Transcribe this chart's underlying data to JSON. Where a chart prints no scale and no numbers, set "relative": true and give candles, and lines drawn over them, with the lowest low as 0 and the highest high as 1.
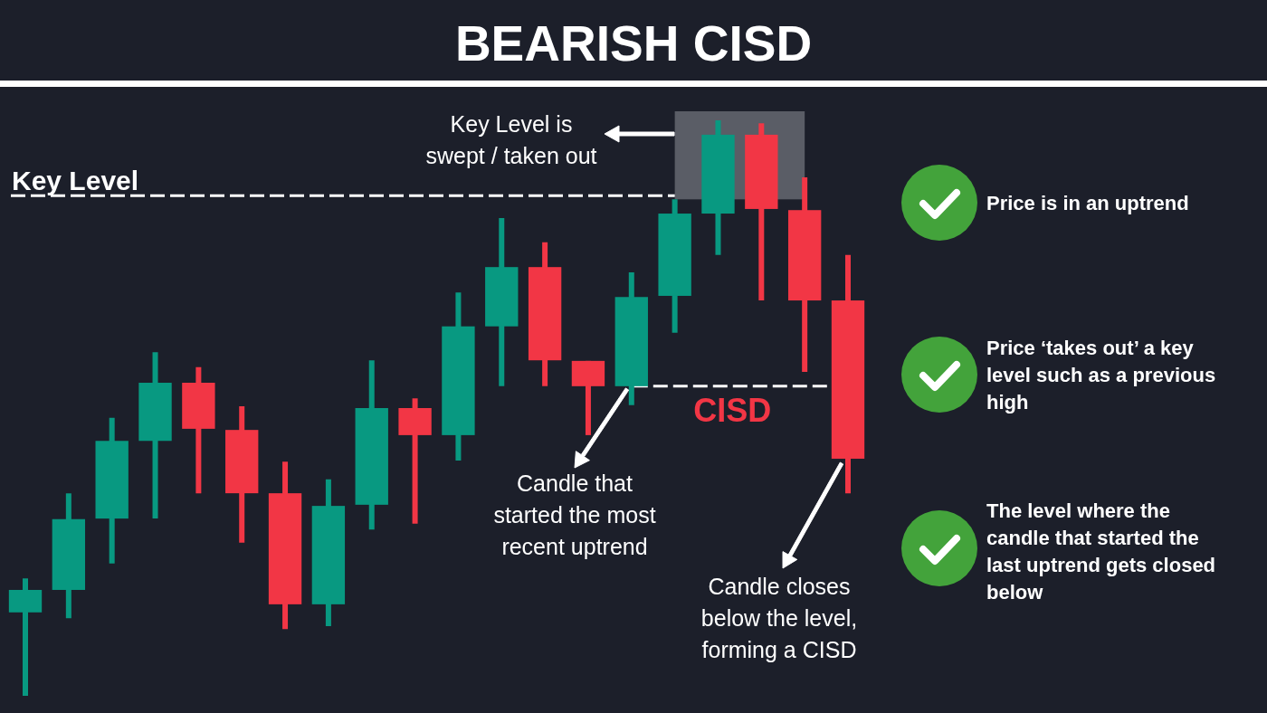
{
  "chart_data": {
    "type": "candlestick",
    "title": "BEARISH CISD",
    "relative": true,
    "categories": [
      null,
      null,
      null,
      null,
      null,
      null,
      null,
      null,
      null,
      null,
      null,
      null,
      null,
      null,
      null,
      null,
      null,
      null,
      null,
      null
    ],
    "ohlc": [
      [
        0.145,
        0.204,
        0,
        0.184
      ],
      [
        0.184,
        0.352,
        0.135,
        0.307
      ],
      [
        0.308,
        0.483,
        0.23,
        0.443
      ],
      [
        0.443,
        0.597,
        0.308,
        0.544
      ],
      [
        0.544,
        0.571,
        0.352,
        0.464
      ],
      [
        0.462,
        0.503,
        0.266,
        0.352
      ],
      [
        0.352,
        0.407,
        0.116,
        0.159
      ],
      [
        0.159,
        0.376,
        0.121,
        0.33
      ],
      [
        0.332,
        0.583,
        0.289,
        0.5
      ],
      [
        0.5,
        0.517,
        0.299,
        0.453
      ],
      [
        0.453,
        0.701,
        0.409,
        0.642
      ],
      [
        0.642,
        0.83,
        0.538,
        0.745
      ],
      [
        0.745,
        0.788,
        0.538,
        0.583
      ],
      [
        0.582,
        0.582,
        0.453,
        0.538
      ],
      [
        0.538,
        0.736,
        0.505,
        0.693
      ],
      [
        0.695,
        0.863,
        0.631,
        0.838
      ],
      [
        0.838,
        1,
        0.766,
        0.975
      ],
      [
        0.975,
        0.995,
        0.687,
        0.846
      ],
      [
        0.844,
        0.901,
        0.563,
        0.687
      ],
      [
        0.687,
        0.766,
        0.352,
        0.412
      ]
    ],
    "colors": [
      "#089981",
      "#089981",
      "#089981",
      "#089981",
      "#f23645",
      "#f23645",
      "#f23645",
      "#089981",
      "#089981",
      "#f23645",
      "#089981",
      "#089981",
      "#f23645",
      "#f23645",
      "#089981",
      "#089981",
      "#089981",
      "#f23645",
      "#f23645",
      "#f23645"
    ],
    "ref_lines": [
      {
        "axis": "y",
        "value": 0.869,
        "label": "Key Level",
        "color": "#ffffff",
        "line_style": "dashed"
      },
      {
        "axis": "y",
        "value": 0.538,
        "label": "CISD",
        "color": "#ffffff",
        "line_style": "dashed"
      }
    ],
    "annotations": [
      "Key Level is swept / taken out",
      "Candle that started the most recent uptrend",
      "Candle closes below the level, forming a CISD",
      "Price is in an uptrend",
      "Price ‘takes out’ a key level such as a previous high",
      "The level where the candle that started the last uptrend gets closed below"
    ]
  }
}
